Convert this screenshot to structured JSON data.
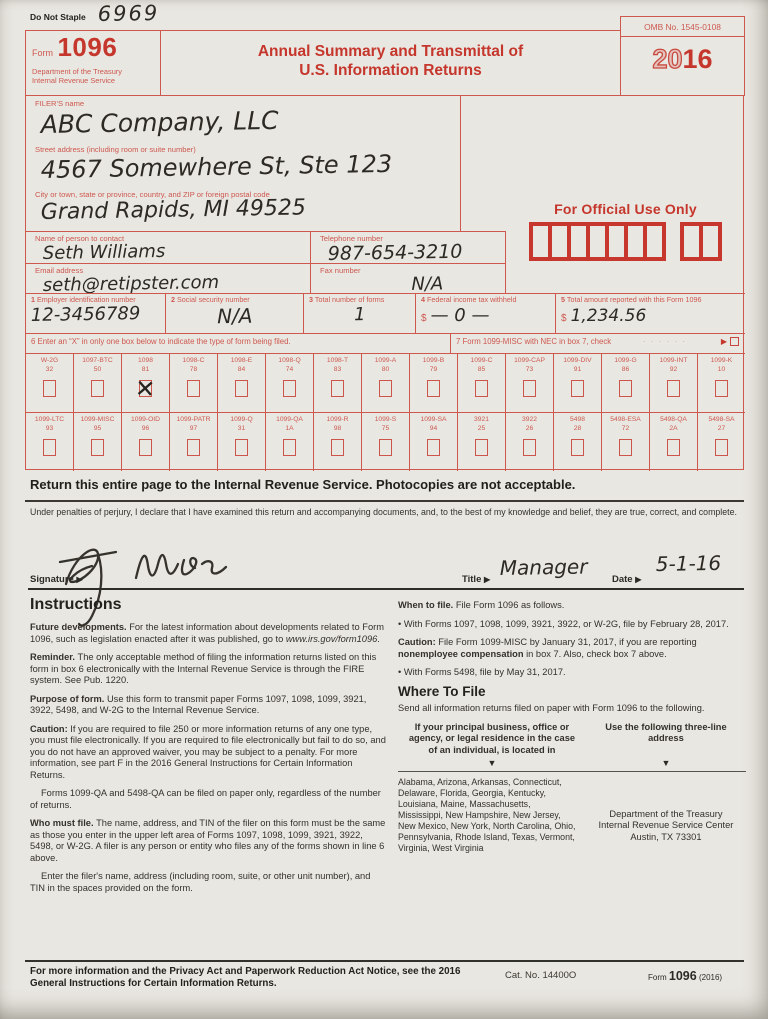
{
  "header": {
    "do_not_staple": "Do Not Staple",
    "staple_number": "6969",
    "form_label": "Form",
    "form_number": "1096",
    "dept1": "Department of the Treasury",
    "dept2": "Internal Revenue Service",
    "title1": "Annual Summary and Transmittal of",
    "title2": "U.S. Information Returns",
    "omb": "OMB No. 1545-0108",
    "year_prefix": "20",
    "year_suffix": "16"
  },
  "filer": {
    "name_label": "FILER'S name",
    "name_value": "ABC Company, LLC",
    "street_label": "Street address (including room or suite number)",
    "street_value": "4567 Somewhere St, Ste 123",
    "city_label": "City or town, state or province, country, and ZIP or foreign postal code",
    "city_value": "Grand Rapids, MI 49525"
  },
  "contact": {
    "name_label": "Name of person to contact",
    "name_value": "Seth Williams",
    "phone_label": "Telephone number",
    "phone_value": "987-654-3210",
    "email_label": "Email address",
    "email_value": "seth@retipster.com",
    "fax_label": "Fax number",
    "fax_value": "N/A"
  },
  "official_use": {
    "label": "For Official Use Only"
  },
  "boxes": {
    "b1_num": "1",
    "b1_text": "Employer identification number",
    "b1_value": "12-3456789",
    "b2_num": "2",
    "b2_text": "Social security number",
    "b2_value": "N/A",
    "b3_num": "3",
    "b3_text": "Total number of forms",
    "b3_value": "1",
    "b4_num": "4",
    "b4_text": "Federal income tax withheld",
    "b4_dollar": "$",
    "b4_value": "— 0 —",
    "b5_num": "5",
    "b5_text": "Total amount reported with this Form 1096",
    "b5_dollar": "$",
    "b5_value": "1,234.56",
    "b6_label": "6 Enter an “X” in only one box below to indicate the type of form being filed.",
    "b7_label": "7 Form 1099-MISC with NEC in box 7, check",
    "b7_leader": ". . . . . .",
    "b7_arrow": "▶"
  },
  "form_grid": {
    "row1": [
      {
        "name": "W-2G",
        "code": "32",
        "checked": false
      },
      {
        "name": "1097-BTC",
        "code": "50",
        "checked": false
      },
      {
        "name": "1098",
        "code": "81",
        "checked": true
      },
      {
        "name": "1098-C",
        "code": "78",
        "checked": false
      },
      {
        "name": "1098-E",
        "code": "84",
        "checked": false
      },
      {
        "name": "1098-Q",
        "code": "74",
        "checked": false
      },
      {
        "name": "1098-T",
        "code": "83",
        "checked": false
      },
      {
        "name": "1099-A",
        "code": "80",
        "checked": false
      },
      {
        "name": "1099-B",
        "code": "79",
        "checked": false
      },
      {
        "name": "1099-C",
        "code": "85",
        "checked": false
      },
      {
        "name": "1099-CAP",
        "code": "73",
        "checked": false
      },
      {
        "name": "1099-DIV",
        "code": "91",
        "checked": false
      },
      {
        "name": "1099-G",
        "code": "86",
        "checked": false
      },
      {
        "name": "1099-INT",
        "code": "92",
        "checked": false
      },
      {
        "name": "1099-K",
        "code": "10",
        "checked": false
      }
    ],
    "row2": [
      {
        "name": "1099-LTC",
        "code": "93",
        "checked": false
      },
      {
        "name": "1099-MISC",
        "code": "95",
        "checked": false
      },
      {
        "name": "1099-OID",
        "code": "96",
        "checked": false
      },
      {
        "name": "1099-PATR",
        "code": "97",
        "checked": false
      },
      {
        "name": "1099-Q",
        "code": "31",
        "checked": false
      },
      {
        "name": "1099-QA",
        "code": "1A",
        "checked": false
      },
      {
        "name": "1099-R",
        "code": "98",
        "checked": false
      },
      {
        "name": "1099-S",
        "code": "75",
        "checked": false
      },
      {
        "name": "1099-SA",
        "code": "94",
        "checked": false
      },
      {
        "name": "3921",
        "code": "25",
        "checked": false
      },
      {
        "name": "3922",
        "code": "26",
        "checked": false
      },
      {
        "name": "5498",
        "code": "28",
        "checked": false
      },
      {
        "name": "5498-ESA",
        "code": "72",
        "checked": false
      },
      {
        "name": "5498-QA",
        "code": "2A",
        "checked": false
      },
      {
        "name": "5498-SA",
        "code": "27",
        "checked": false
      }
    ]
  },
  "return_notice": "Return this entire page to the Internal Revenue Service. Photocopies are not acceptable.",
  "perjury": "Under penalties of perjury, I declare that I have examined this return and accompanying documents, and, to the best of my knowledge and belief, they are true, correct, and complete.",
  "signature": {
    "sig_label": "Signature",
    "arrow": "▶",
    "title_label": "Title",
    "title_value": "Manager",
    "date_label": "Date",
    "date_value": "5-1-16"
  },
  "instructions": {
    "heading": "Instructions",
    "left": [
      {
        "seg": [
          {
            "t": "Future developments. ",
            "b": 1
          },
          {
            "t": "For the latest information about developments related to Form 1096, such as legislation enacted after it was published, go to "
          },
          {
            "t": "www.irs.gov/form1096",
            "i": 1
          },
          {
            "t": "."
          }
        ]
      },
      {
        "seg": [
          {
            "t": "Reminder. ",
            "b": 1
          },
          {
            "t": "The only acceptable method of filing the information returns listed on this form in box 6 electronically with the Internal Revenue Service is through the FIRE system. See Pub. 1220."
          }
        ]
      },
      {
        "seg": [
          {
            "t": "Purpose of form. ",
            "b": 1
          },
          {
            "t": "Use this form to transmit paper Forms 1097, 1098, 1099, 3921, 3922, 5498, and W-2G to the Internal Revenue Service."
          }
        ]
      },
      {
        "seg": [
          {
            "t": "Caution: ",
            "b": 1
          },
          {
            "t": "If you are required to file 250 or more information returns of any one type, you must file electronically. If you are required to file electronically but fail to do so, and you do not have an approved waiver, you may be subject to a penalty. For more information, see part F in the 2016 General Instructions for Certain Information Returns."
          }
        ]
      },
      {
        "indent": 1,
        "seg": [
          {
            "t": "Forms 1099-QA and 5498-QA can be filed on paper only, regardless of the number of returns."
          }
        ]
      },
      {
        "seg": [
          {
            "t": "Who must file. ",
            "b": 1
          },
          {
            "t": "The name, address, and TIN of the filer on this form must be the same as those you enter in the upper left area of Forms 1097, 1098, 1099, 3921, 3922, 5498, or W-2G. A filer is any person or entity who files any of the forms shown in line 6 above."
          }
        ]
      },
      {
        "indent": 1,
        "seg": [
          {
            "t": "Enter the filer's name, address (including room, suite, or other unit number), and TIN in the spaces provided on the form."
          }
        ]
      }
    ],
    "right": [
      {
        "seg": [
          {
            "t": "When to file. ",
            "b": 1
          },
          {
            "t": "File Form 1096 as follows."
          }
        ]
      },
      {
        "seg": [
          {
            "t": "• With Forms 1097, 1098, 1099, 3921, 3922, or W-2G, file by February 28, 2017."
          }
        ]
      },
      {
        "seg": [
          {
            "t": "Caution: ",
            "b": 1
          },
          {
            "t": "File Form 1099-MISC by January 31, 2017, if you are reporting "
          },
          {
            "t": "nonemployee compensation",
            "b": 1
          },
          {
            "t": " in box 7. Also, check box 7 above."
          }
        ]
      },
      {
        "seg": [
          {
            "t": "• With Forms 5498, file by May 31, 2017."
          }
        ]
      }
    ]
  },
  "where_to_file": {
    "heading": "Where To File",
    "intro": "Send all information returns filed on paper with Form 1096 to the following.",
    "left_header": "If your principal business, office or agency, or legal residence in the case of an individual, is located in",
    "right_header": "Use the following three-line address",
    "down_arrow": "▼",
    "states": "Alabama, Arizona, Arkansas, Connecticut, Delaware, Florida, Georgia, Kentucky, Louisiana, Maine, Massachusetts, Mississippi, New Hampshire, New Jersey, New Mexico, New York, North Carolina, Ohio, Pennsylvania, Rhode Island, Texas, Vermont, Virginia, West Virginia",
    "address": [
      "Department of the Treasury",
      "Internal Revenue Service Center",
      "Austin, TX 73301"
    ]
  },
  "footer": {
    "notice": "For more information and the Privacy Act and Paperwork Reduction Act Notice, see the 2016 General Instructions for Certain Information Returns.",
    "cat": "Cat. No. 14400O",
    "form_label": "Form",
    "form_number": "1096",
    "form_year": "(2016)"
  }
}
